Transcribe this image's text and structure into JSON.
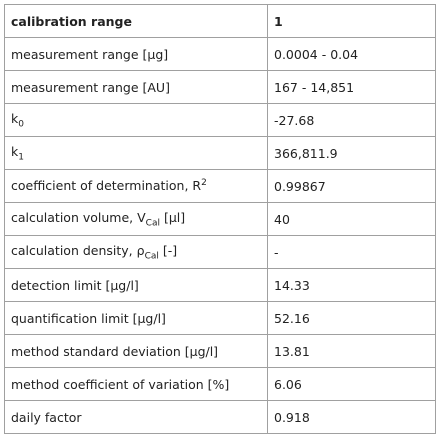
{
  "table": {
    "header": [
      "calibration range",
      "1"
    ],
    "rows": [
      {
        "label": [
          {
            "text": "measurement range [µg]"
          }
        ],
        "value": "0.0004 - 0.04"
      },
      {
        "label": [
          {
            "text": "measurement range [AU]"
          }
        ],
        "value": "167 - 14,851"
      },
      {
        "label": [
          {
            "text": "k"
          },
          {
            "sub": "0"
          }
        ],
        "value": "-27.68"
      },
      {
        "label": [
          {
            "text": "k"
          },
          {
            "sub": "1"
          }
        ],
        "value": "366,811.9"
      },
      {
        "label": [
          {
            "text": "coefficient of determination, R"
          },
          {
            "sup": "2"
          }
        ],
        "value": "0.99867"
      },
      {
        "label": [
          {
            "text": "calculation volume, V"
          },
          {
            "sub": "Cal"
          },
          {
            "text": " [µl]"
          }
        ],
        "value": "40"
      },
      {
        "label": [
          {
            "text": "calculation density, ρ"
          },
          {
            "sub": "Cal"
          },
          {
            "text": " [-]"
          }
        ],
        "value": "-"
      },
      {
        "label": [
          {
            "text": "detection limit [µg/l]"
          }
        ],
        "value": "14.33"
      },
      {
        "label": [
          {
            "text": "quantification limit [µg/l]"
          }
        ],
        "value": "52.16"
      },
      {
        "label": [
          {
            "text": "method standard deviation [µg/l]"
          }
        ],
        "value": "13.81"
      },
      {
        "label": [
          {
            "text": "method coefficient of variation [%]"
          }
        ],
        "value": "6.06"
      },
      {
        "label": [
          {
            "text": "daily factor"
          }
        ],
        "value": "0.918"
      }
    ]
  }
}
